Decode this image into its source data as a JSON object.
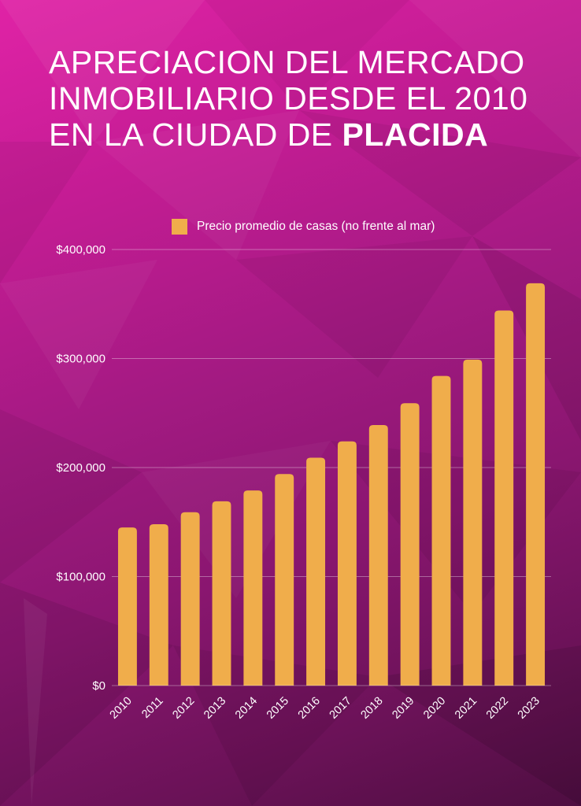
{
  "title": {
    "line1": "APRECIACION DEL MERCADO",
    "line2": "INMOBILIARIO DESDE EL 2010",
    "line3_prefix": "EN LA CIUDAD DE ",
    "line3_bold": "PLACIDA"
  },
  "colors": {
    "bar": "#f0ad4b",
    "text": "#ffffff",
    "grid": "rgba(255,255,255,0.35)"
  },
  "chart_data": {
    "type": "bar",
    "title": "APRECIACION DEL MERCADO INMOBILIARIO DESDE EL 2010 EN LA CIUDAD DE PLACIDA",
    "legend_position": "top",
    "grid": true,
    "categories": [
      "2010",
      "2011",
      "2012",
      "2013",
      "2014",
      "2015",
      "2016",
      "2017",
      "2018",
      "2019",
      "2020",
      "2021",
      "2022",
      "2023"
    ],
    "series": [
      {
        "name": "Precio promedio de casas (no frente al mar)",
        "values": [
          145000,
          148000,
          159000,
          169000,
          179000,
          194000,
          209000,
          224000,
          239000,
          259000,
          284000,
          299000,
          344000,
          369000
        ]
      }
    ],
    "ylim": [
      0,
      400000
    ],
    "y_ticks": [
      0,
      100000,
      200000,
      300000,
      400000
    ],
    "y_tick_labels": [
      "$0",
      "$100,000",
      "$200,000",
      "$300,000",
      "$400,000"
    ],
    "xlabel": "",
    "ylabel": ""
  }
}
